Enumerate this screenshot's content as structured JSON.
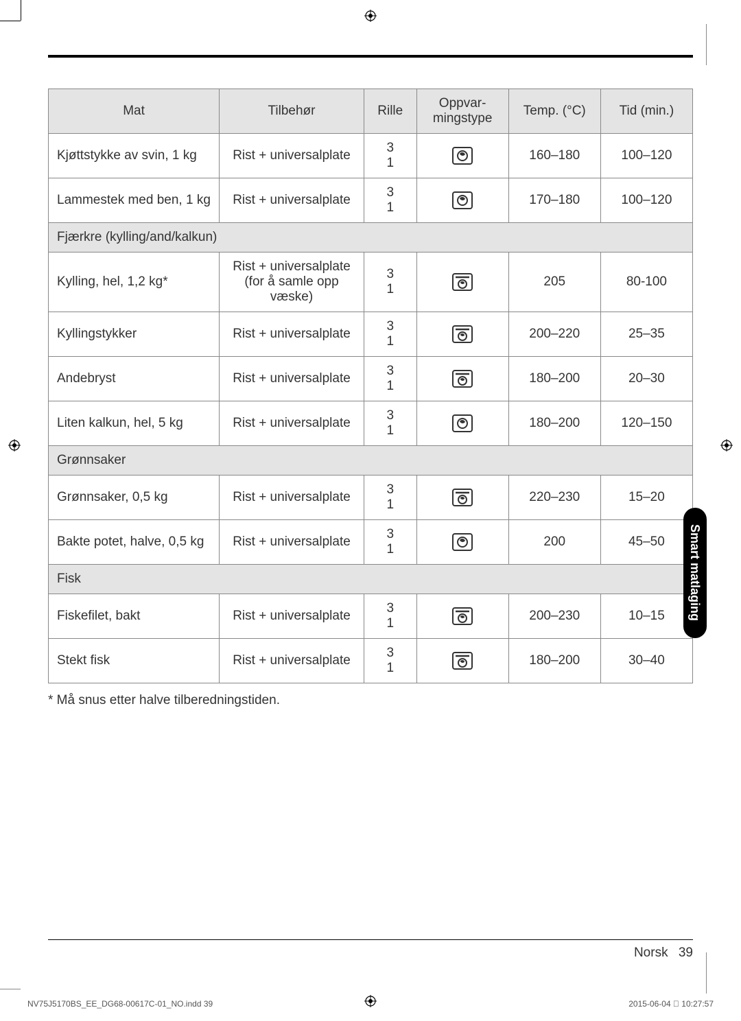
{
  "table": {
    "headers": {
      "mat": "Mat",
      "tilbehor": "Tilbehør",
      "rille": "Rille",
      "oppvar": "Oppvar-\nmingstype",
      "temp": "Temp. (°C)",
      "tid": "Tid (min.)"
    },
    "rows": [
      {
        "type": "data",
        "mat": "Kjøttstykke av svin, 1 kg",
        "tilb": "Rist + universalplate",
        "rille": "3\n1",
        "icon": "fan-box",
        "temp": "160–180",
        "tid": "100–120"
      },
      {
        "type": "data",
        "mat": "Lammestek med ben, 1 kg",
        "tilb": "Rist + universalplate",
        "rille": "3\n1",
        "icon": "fan-box",
        "temp": "170–180",
        "tid": "100–120"
      },
      {
        "type": "section",
        "label": "Fjærkre (kylling/and/kalkun)"
      },
      {
        "type": "data",
        "mat": "Kylling, hel, 1,2 kg*",
        "tilb": "Rist + universalplate (for å samle opp væske)",
        "rille": "3\n1",
        "icon": "fan-top",
        "temp": "205",
        "tid": "80-100"
      },
      {
        "type": "data",
        "mat": "Kyllingstykker",
        "tilb": "Rist + universalplate",
        "rille": "3\n1",
        "icon": "fan-top",
        "temp": "200–220",
        "tid": "25–35"
      },
      {
        "type": "data",
        "mat": "Andebryst",
        "tilb": "Rist + universalplate",
        "rille": "3\n1",
        "icon": "fan-top",
        "temp": "180–200",
        "tid": "20–30"
      },
      {
        "type": "data",
        "mat": "Liten kalkun, hel, 5 kg",
        "tilb": "Rist + universalplate",
        "rille": "3\n1",
        "icon": "fan-box",
        "temp": "180–200",
        "tid": "120–150"
      },
      {
        "type": "section",
        "label": "Grønnsaker"
      },
      {
        "type": "data",
        "mat": "Grønnsaker, 0,5 kg",
        "tilb": "Rist + universalplate",
        "rille": "3\n1",
        "icon": "fan-top",
        "temp": "220–230",
        "tid": "15–20"
      },
      {
        "type": "data",
        "mat": "Bakte potet, halve, 0,5 kg",
        "tilb": "Rist + universalplate",
        "rille": "3\n1",
        "icon": "fan-box",
        "temp": "200",
        "tid": "45–50"
      },
      {
        "type": "section",
        "label": "Fisk"
      },
      {
        "type": "data",
        "mat": "Fiskefilet, bakt",
        "tilb": "Rist + universalplate",
        "rille": "3\n1",
        "icon": "fan-top",
        "temp": "200–230",
        "tid": "10–15"
      },
      {
        "type": "data",
        "mat": "Stekt fisk",
        "tilb": "Rist + universalplate",
        "rille": "3\n1",
        "icon": "fan-top",
        "temp": "180–200",
        "tid": "30–40"
      }
    ]
  },
  "footnote": "* Må snus etter halve tilberedningstiden.",
  "sidetab": "Smart matlaging",
  "footer": {
    "lang": "Norsk",
    "page": "39"
  },
  "printfooter": {
    "left": "NV75J5170BS_EE_DG68-00617C-01_NO.indd   39",
    "right": "2015-06-04   􀀀 10:27:57"
  },
  "colors": {
    "header_bg": "#e4e4e4",
    "border": "#888888",
    "text": "#333333",
    "tab_bg": "#000000",
    "tab_text": "#ffffff"
  }
}
